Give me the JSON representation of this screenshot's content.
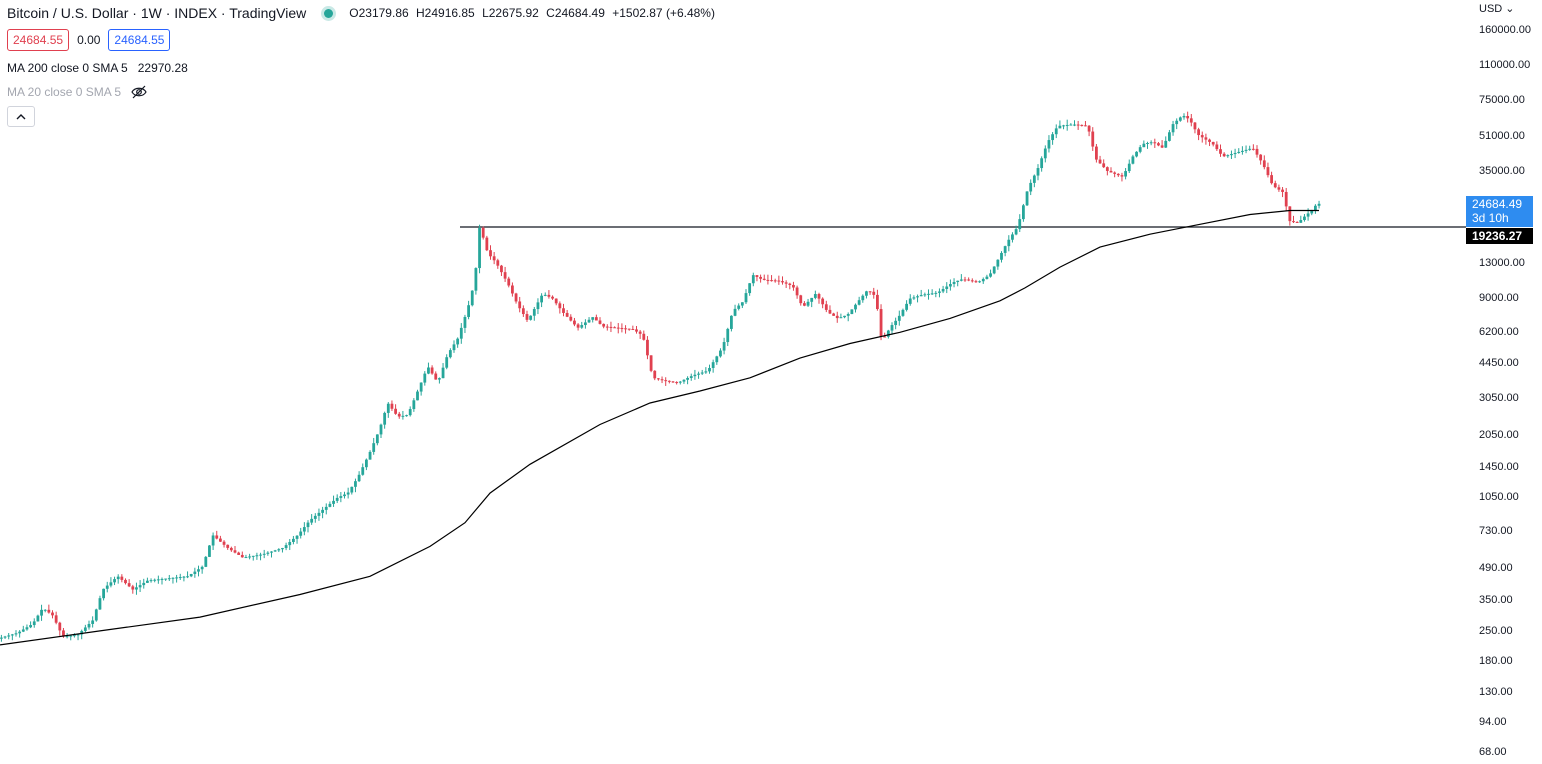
{
  "header": {
    "title": "Bitcoin / U.S. Dollar · 1W · INDEX · TradingView",
    "open": "O23179.86",
    "high": "H24916.85",
    "low": "L22675.92",
    "close": "C24684.49",
    "change": "+1502.87 (+6.48%)"
  },
  "prices": {
    "bid": "24684.55",
    "spread": "0.00",
    "ask": "24684.55"
  },
  "indicators": {
    "ma200_label": "MA 200 close 0 SMA 5",
    "ma200_value": "22970.28",
    "ma20_label": "MA 20 close 0 SMA 5"
  },
  "axis": {
    "currency": "USD",
    "ticks": [
      "160000.00",
      "110000.00",
      "75000.00",
      "51000.00",
      "35000.00",
      "13000.00",
      "9000.00",
      "6200.00",
      "4450.00",
      "3050.00",
      "2050.00",
      "1450.00",
      "1050.00",
      "730.00",
      "490.00",
      "350.00",
      "250.00",
      "180.00",
      "130.00",
      "94.00",
      "68.00"
    ],
    "last_price": "24684.49",
    "countdown": "3d 10h",
    "horizontal_line_price": "19236.27"
  },
  "colors": {
    "up": "#26a69a",
    "down": "#e0404f",
    "ma": "#000000",
    "accent": "#2e8cf0"
  },
  "icons": {
    "status": "market-open-dot-icon",
    "eye": "eye-hidden-icon",
    "collapse": "chevron-up-icon",
    "currency_menu": "chevron-down-icon"
  },
  "chart_data": {
    "type": "candlestick",
    "scale": "log",
    "ylim": [
      68,
      160000
    ],
    "horizontal_line": 19236.27,
    "close_path": [
      [
        0,
        230
      ],
      [
        20,
        245
      ],
      [
        35,
        270
      ],
      [
        45,
        320
      ],
      [
        55,
        295
      ],
      [
        65,
        235
      ],
      [
        80,
        240
      ],
      [
        95,
        280
      ],
      [
        105,
        390
      ],
      [
        120,
        450
      ],
      [
        135,
        390
      ],
      [
        150,
        430
      ],
      [
        170,
        440
      ],
      [
        190,
        450
      ],
      [
        205,
        500
      ],
      [
        215,
        700
      ],
      [
        230,
        610
      ],
      [
        245,
        550
      ],
      [
        265,
        570
      ],
      [
        285,
        610
      ],
      [
        300,
        700
      ],
      [
        312,
        820
      ],
      [
        325,
        920
      ],
      [
        340,
        1050
      ],
      [
        350,
        1100
      ],
      [
        360,
        1300
      ],
      [
        372,
        1700
      ],
      [
        382,
        2200
      ],
      [
        390,
        2900
      ],
      [
        400,
        2500
      ],
      [
        410,
        2550
      ],
      [
        420,
        3300
      ],
      [
        430,
        4300
      ],
      [
        440,
        3600
      ],
      [
        450,
        4900
      ],
      [
        460,
        5800
      ],
      [
        470,
        8000
      ],
      [
        477,
        10800
      ],
      [
        482,
        19500
      ],
      [
        490,
        14500
      ],
      [
        498,
        13200
      ],
      [
        510,
        10500
      ],
      [
        520,
        8300
      ],
      [
        530,
        7000
      ],
      [
        545,
        9400
      ],
      [
        555,
        8900
      ],
      [
        565,
        7700
      ],
      [
        580,
        6500
      ],
      [
        595,
        7300
      ],
      [
        605,
        6600
      ],
      [
        620,
        6500
      ],
      [
        635,
        6400
      ],
      [
        645,
        6000
      ],
      [
        655,
        3800
      ],
      [
        665,
        3700
      ],
      [
        680,
        3600
      ],
      [
        695,
        3900
      ],
      [
        710,
        4100
      ],
      [
        725,
        5300
      ],
      [
        735,
        7800
      ],
      [
        745,
        8600
      ],
      [
        755,
        11500
      ],
      [
        765,
        10900
      ],
      [
        780,
        10800
      ],
      [
        795,
        10200
      ],
      [
        805,
        8100
      ],
      [
        818,
        9400
      ],
      [
        830,
        7700
      ],
      [
        840,
        7200
      ],
      [
        850,
        7500
      ],
      [
        860,
        8600
      ],
      [
        870,
        9800
      ],
      [
        878,
        9100
      ],
      [
        884,
        5600
      ],
      [
        893,
        6600
      ],
      [
        900,
        7200
      ],
      [
        912,
        8900
      ],
      [
        925,
        9300
      ],
      [
        940,
        9500
      ],
      [
        955,
        10600
      ],
      [
        965,
        11000
      ],
      [
        980,
        10600
      ],
      [
        992,
        11500
      ],
      [
        1000,
        13500
      ],
      [
        1010,
        16500
      ],
      [
        1020,
        19300
      ],
      [
        1030,
        29000
      ],
      [
        1040,
        36000
      ],
      [
        1050,
        48000
      ],
      [
        1060,
        57000
      ],
      [
        1075,
        58000
      ],
      [
        1090,
        57000
      ],
      [
        1098,
        40000
      ],
      [
        1110,
        35000
      ],
      [
        1125,
        33000
      ],
      [
        1135,
        41000
      ],
      [
        1145,
        47000
      ],
      [
        1155,
        48000
      ],
      [
        1165,
        45000
      ],
      [
        1175,
        58000
      ],
      [
        1185,
        64000
      ],
      [
        1192,
        61000
      ],
      [
        1200,
        52000
      ],
      [
        1215,
        47000
      ],
      [
        1225,
        41000
      ],
      [
        1240,
        43000
      ],
      [
        1255,
        45000
      ],
      [
        1265,
        38000
      ],
      [
        1275,
        30000
      ],
      [
        1285,
        28000
      ],
      [
        1292,
        20500
      ],
      [
        1300,
        20100
      ],
      [
        1308,
        21800
      ],
      [
        1315,
        23200
      ],
      [
        1319,
        24684
      ]
    ],
    "series": [
      {
        "name": "MA 200 close 0 SMA 5",
        "value": 22970.28
      }
    ],
    "ma_path": [
      [
        0,
        215
      ],
      [
        100,
        250
      ],
      [
        200,
        290
      ],
      [
        300,
        370
      ],
      [
        370,
        450
      ],
      [
        430,
        620
      ],
      [
        465,
        800
      ],
      [
        490,
        1100
      ],
      [
        530,
        1500
      ],
      [
        600,
        2300
      ],
      [
        650,
        2900
      ],
      [
        700,
        3300
      ],
      [
        750,
        3800
      ],
      [
        800,
        4700
      ],
      [
        850,
        5500
      ],
      [
        900,
        6200
      ],
      [
        950,
        7200
      ],
      [
        1000,
        8700
      ],
      [
        1025,
        10000
      ],
      [
        1060,
        12500
      ],
      [
        1100,
        15500
      ],
      [
        1150,
        17800
      ],
      [
        1200,
        19800
      ],
      [
        1250,
        22000
      ],
      [
        1290,
        22970
      ],
      [
        1319,
        22970
      ]
    ]
  }
}
